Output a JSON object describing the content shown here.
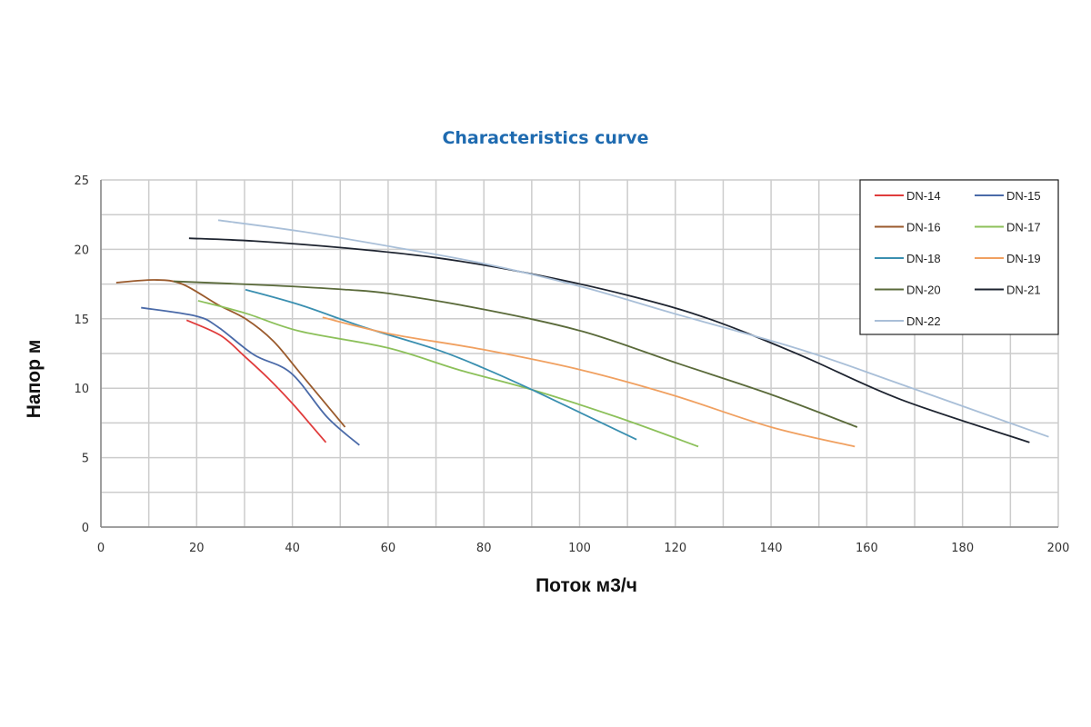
{
  "chart_data": {
    "type": "line",
    "title": "Characteristics curve",
    "xlabel": "Поток м3/ч",
    "ylabel": "Напор м",
    "xlim": [
      0,
      200
    ],
    "ylim": [
      0,
      25
    ],
    "xticks": [
      "0",
      "20",
      "40",
      "60",
      "80",
      "100",
      "120",
      "140",
      "160",
      "180",
      "200"
    ],
    "yticks": [
      "0",
      "5",
      "10",
      "15",
      "20",
      "25"
    ],
    "grid": true,
    "legend_position": "top-right",
    "series": [
      {
        "name": "DN-14",
        "color": "#e03c3c",
        "points": [
          [
            17.9,
            14.9
          ],
          [
            25,
            13.8
          ],
          [
            30,
            12.3
          ],
          [
            35,
            10.7
          ],
          [
            40,
            8.9
          ],
          [
            44,
            7.3
          ],
          [
            47,
            6.1
          ]
        ]
      },
      {
        "name": "DN-15",
        "color": "#4a6aa8",
        "points": [
          [
            8.4,
            15.8
          ],
          [
            19.8,
            15.2
          ],
          [
            24.5,
            14.4
          ],
          [
            32,
            12.4
          ],
          [
            39.7,
            11.1
          ],
          [
            47.3,
            7.9
          ],
          [
            54,
            5.9
          ]
        ]
      },
      {
        "name": "DN-16",
        "color": "#9a5a2c",
        "points": [
          [
            3.2,
            17.6
          ],
          [
            11.2,
            17.8
          ],
          [
            17,
            17.5
          ],
          [
            24.5,
            16.0
          ],
          [
            30.2,
            15.0
          ],
          [
            36,
            13.4
          ],
          [
            41.6,
            11.1
          ],
          [
            51,
            7.2
          ]
        ]
      },
      {
        "name": "DN-17",
        "color": "#8cc05a",
        "points": [
          [
            20.3,
            16.3
          ],
          [
            30.2,
            15.4
          ],
          [
            41.6,
            14.1
          ],
          [
            60,
            12.9
          ],
          [
            75,
            11.3
          ],
          [
            90,
            9.9
          ],
          [
            108,
            7.9
          ],
          [
            124.8,
            5.8
          ]
        ]
      },
      {
        "name": "DN-18",
        "color": "#3a8fb0",
        "points": [
          [
            30.2,
            17.1
          ],
          [
            41.6,
            16.0
          ],
          [
            54.9,
            14.4
          ],
          [
            70,
            12.8
          ],
          [
            79.6,
            11.5
          ],
          [
            90,
            9.9
          ],
          [
            111.9,
            6.3
          ]
        ]
      },
      {
        "name": "DN-19",
        "color": "#f0a060",
        "points": [
          [
            46.3,
            15.1
          ],
          [
            60.6,
            13.9
          ],
          [
            79.6,
            12.8
          ],
          [
            100.5,
            11.3
          ],
          [
            119.5,
            9.5
          ],
          [
            140,
            7.2
          ],
          [
            157.5,
            5.8
          ]
        ]
      },
      {
        "name": "DN-20",
        "color": "#5a6a3a",
        "points": [
          [
            15.2,
            17.7
          ],
          [
            35.9,
            17.4
          ],
          [
            51.1,
            17.1
          ],
          [
            60.6,
            16.8
          ],
          [
            79.6,
            15.7
          ],
          [
            100.5,
            14.1
          ],
          [
            120.4,
            11.8
          ],
          [
            140.4,
            9.5
          ],
          [
            158,
            7.2
          ]
        ]
      },
      {
        "name": "DN-21",
        "color": "#1e2430",
        "points": [
          [
            18.4,
            20.8
          ],
          [
            32,
            20.6
          ],
          [
            51,
            20.1
          ],
          [
            70,
            19.4
          ],
          [
            89,
            18.3
          ],
          [
            110,
            16.7
          ],
          [
            127,
            15.0
          ],
          [
            146,
            12.4
          ],
          [
            167,
            9.2
          ],
          [
            194,
            6.1
          ]
        ]
      },
      {
        "name": "DN-22",
        "color": "#a9bfd8",
        "points": [
          [
            24.5,
            22.1
          ],
          [
            41.6,
            21.3
          ],
          [
            60.6,
            20.2
          ],
          [
            79.6,
            19.0
          ],
          [
            100.5,
            17.3
          ],
          [
            119.5,
            15.4
          ],
          [
            146,
            12.8
          ],
          [
            167,
            10.3
          ],
          [
            198,
            6.5
          ]
        ]
      }
    ]
  }
}
